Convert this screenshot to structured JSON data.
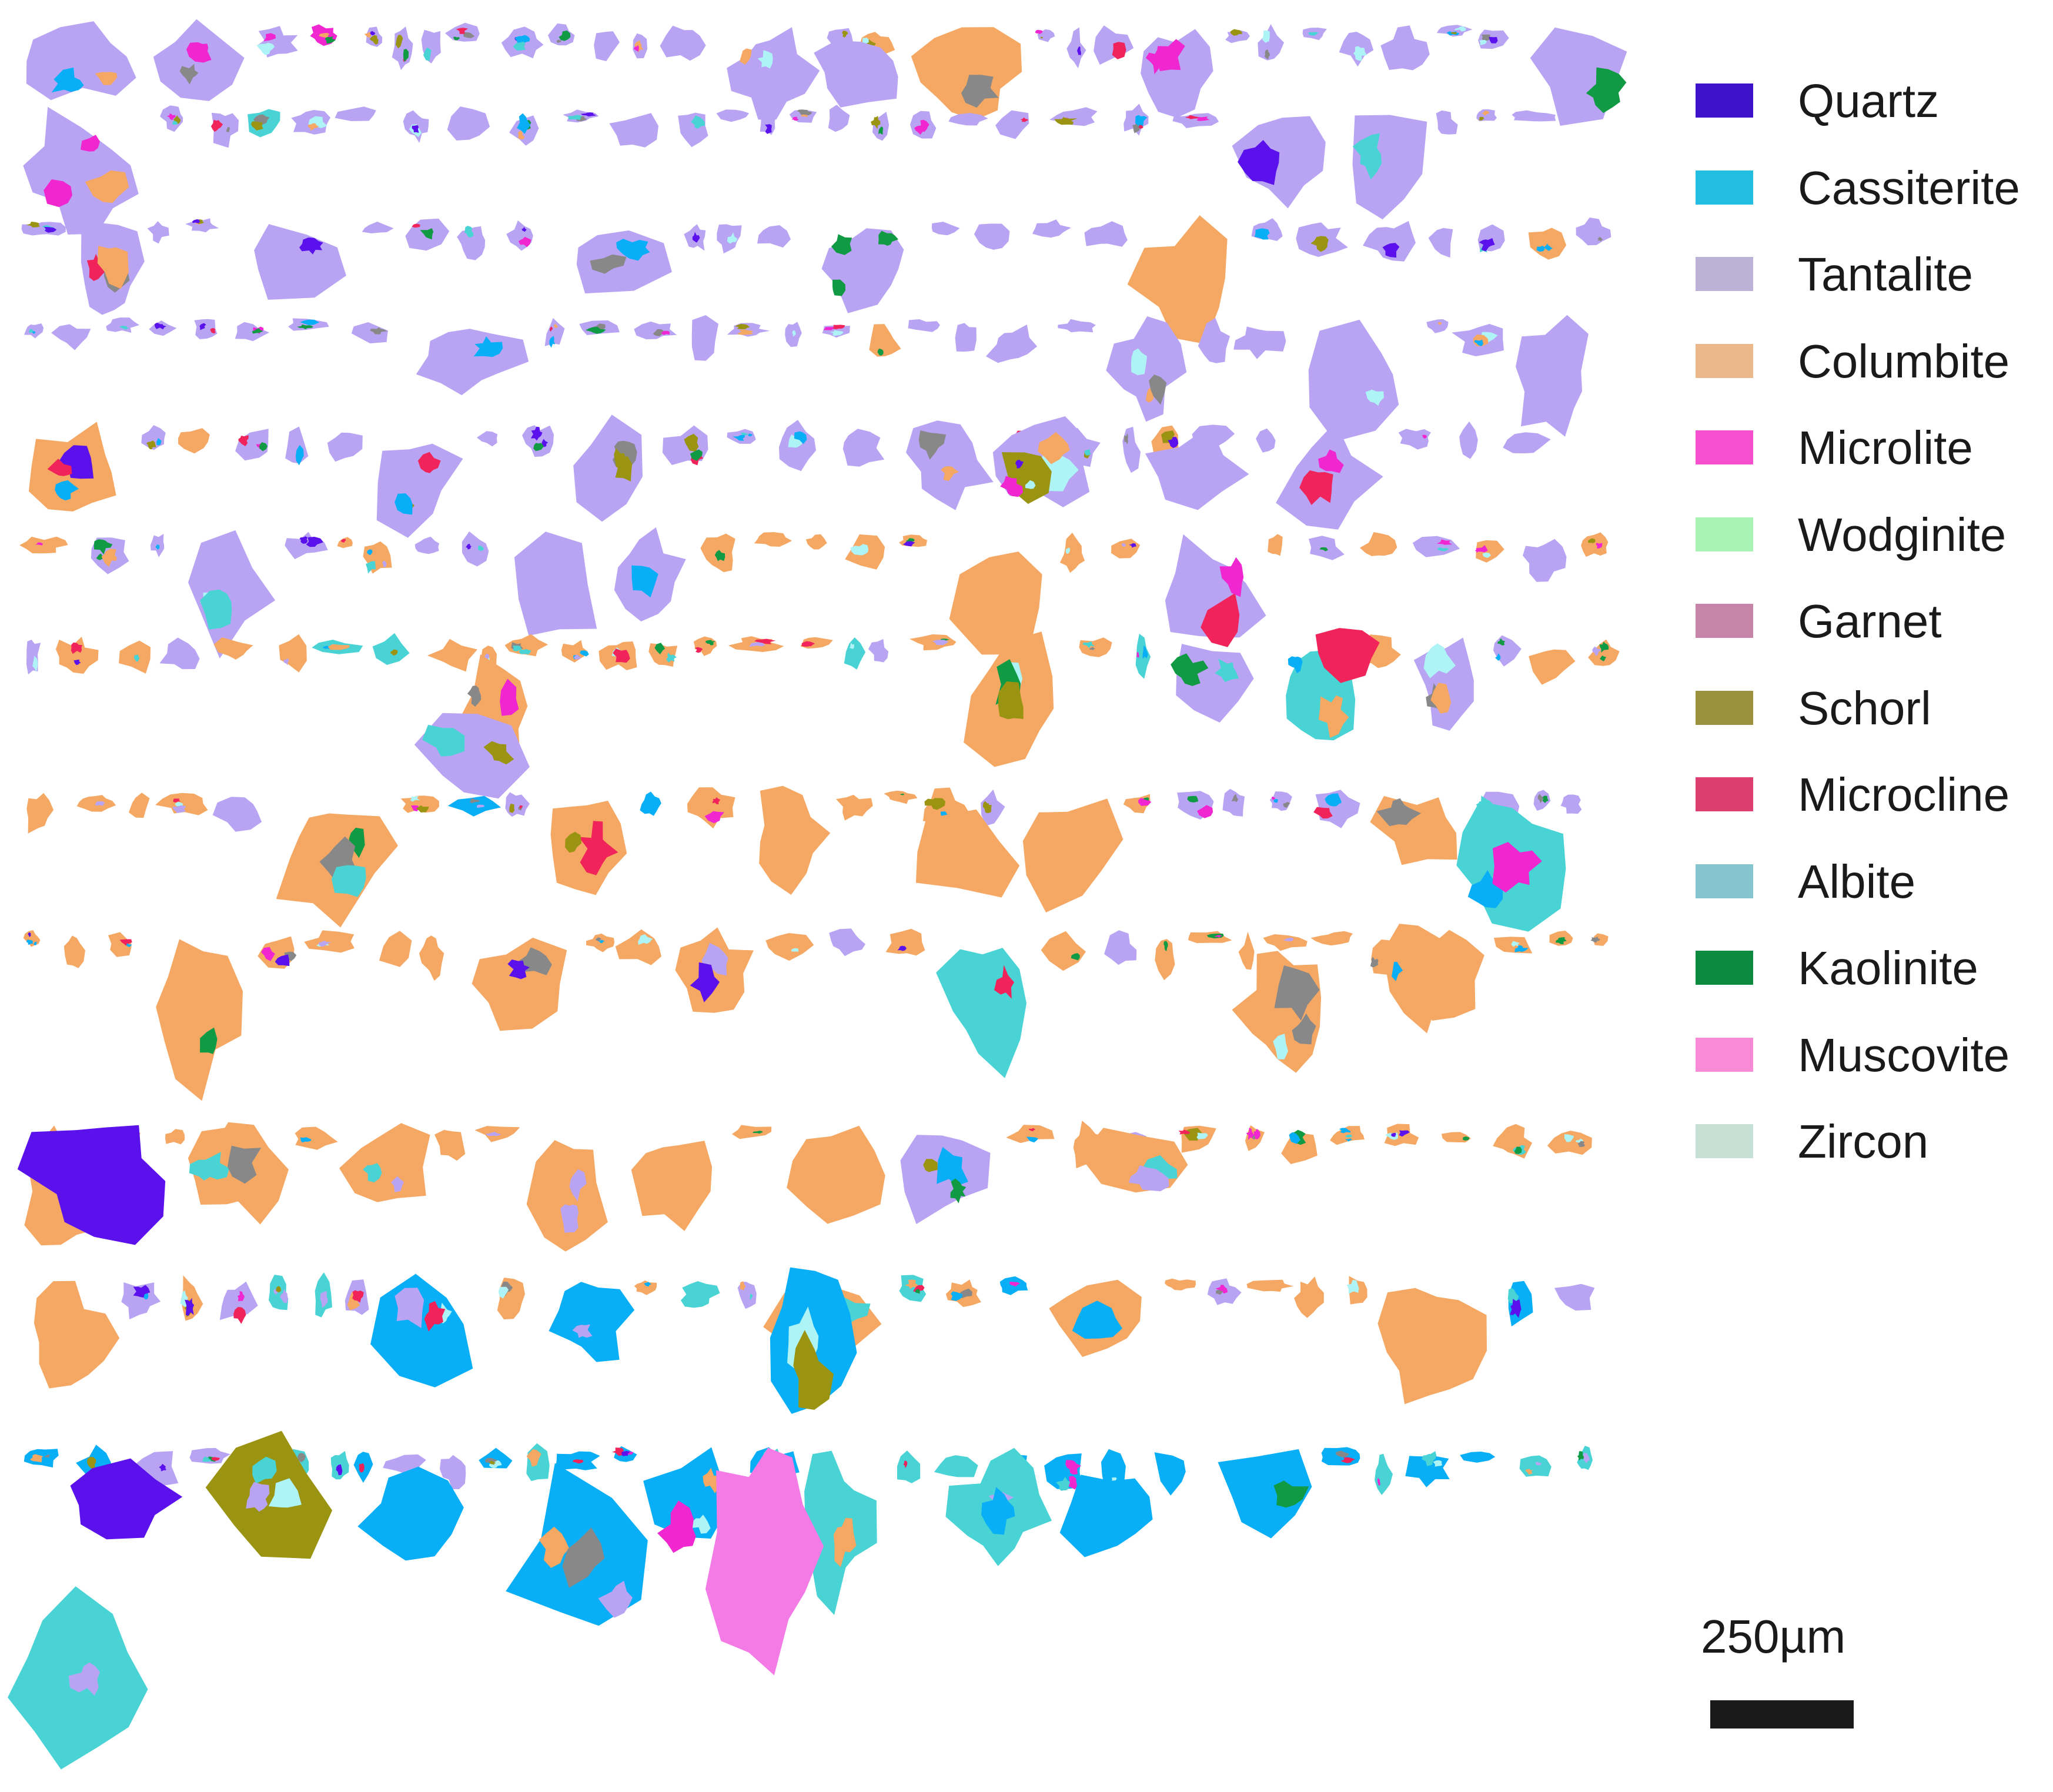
{
  "legend": {
    "items": [
      {
        "label": "Quartz",
        "color": "#3c12c8"
      },
      {
        "label": "Cassiterite",
        "color": "#22bde0"
      },
      {
        "label": "Tantalite",
        "color": "#bcb2d8"
      },
      {
        "label": "Columbite",
        "color": "#eab88a"
      },
      {
        "label": "Microlite",
        "color": "#f650cf"
      },
      {
        "label": "Wodginite",
        "color": "#a8f3b4"
      },
      {
        "label": "Garnet",
        "color": "#c685a8"
      },
      {
        "label": "Schorl",
        "color": "#9b913c"
      },
      {
        "label": "Microcline",
        "color": "#dd3e70"
      },
      {
        "label": "Albite",
        "color": "#84c5d0"
      },
      {
        "label": "Kaolinite",
        "color": "#0c8a40"
      },
      {
        "label": "Muscovite",
        "color": "#f88ad6"
      },
      {
        "label": "Zircon",
        "color": "#c6e0d6"
      }
    ]
  },
  "map_colors": {
    "tantalite": "#b9a4f4",
    "columbite": "#f5a864",
    "cassiterite": "#08aef6",
    "quartz": "#5a11ec",
    "albite": "#49d3d4",
    "microlite": "#f026d0",
    "microcline": "#f0235a",
    "schorl": "#9a9412",
    "muscovite": "#f47ae6",
    "wodginite": "#80f08c",
    "kaolinite": "#119a44",
    "zircon": "#aef4f6",
    "garnet": "#888888"
  },
  "scale": {
    "label": "250µm"
  }
}
